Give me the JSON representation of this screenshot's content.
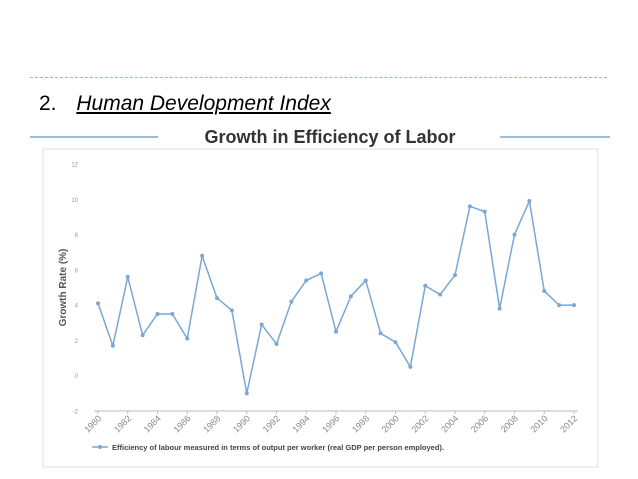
{
  "section": {
    "number": "2.",
    "title": "Human Development Index"
  },
  "chart_data": {
    "type": "line",
    "title": "Growth in Efficiency of Labor",
    "ylabel": "Growth Rate (%)",
    "xlabel": "",
    "ylim": [
      -2,
      12
    ],
    "yticks": [
      -2,
      0,
      2,
      4,
      6,
      8,
      10,
      12
    ],
    "xticks": [
      1980,
      1982,
      1984,
      1986,
      1988,
      1990,
      1992,
      1994,
      1996,
      1998,
      2000,
      2002,
      2004,
      2006,
      2008,
      2010,
      2012
    ],
    "grid": false,
    "legend_position": "bottom",
    "series": [
      {
        "name": "Efficiency of labour measured in terms of output per worker (real GDP per person employed).",
        "color": "#7aa7d4",
        "x": [
          1980,
          1981,
          1982,
          1983,
          1984,
          1985,
          1986,
          1987,
          1988,
          1989,
          1990,
          1991,
          1992,
          1993,
          1994,
          1995,
          1996,
          1997,
          1998,
          1999,
          2000,
          2001,
          2002,
          2003,
          2004,
          2005,
          2006,
          2007,
          2008,
          2009,
          2010,
          2011,
          2012
        ],
        "y": [
          4.1,
          1.7,
          5.6,
          2.3,
          3.5,
          3.5,
          2.1,
          6.8,
          4.4,
          3.7,
          -1.0,
          2.9,
          1.8,
          4.2,
          5.4,
          5.8,
          2.5,
          4.5,
          5.4,
          2.4,
          1.9,
          0.5,
          5.1,
          4.6,
          5.7,
          9.6,
          9.3,
          3.8,
          8.0,
          9.9,
          4.8,
          4.0,
          4.0
        ]
      }
    ]
  }
}
